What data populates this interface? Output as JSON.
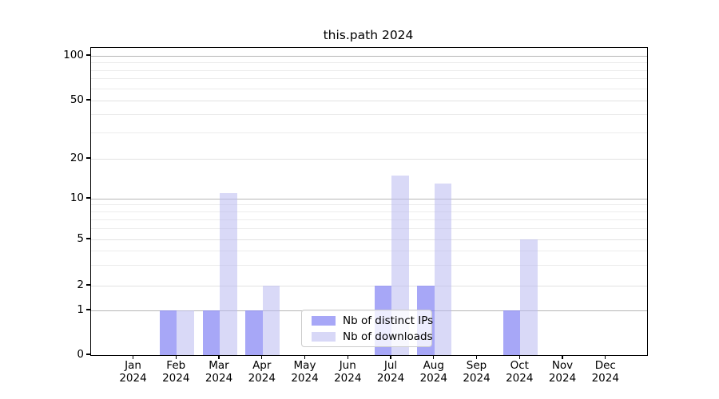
{
  "chart_data": {
    "type": "bar",
    "title": "this.path 2024",
    "categories": [
      "Jan",
      "Feb",
      "Mar",
      "Apr",
      "May",
      "Jun",
      "Jul",
      "Aug",
      "Sep",
      "Oct",
      "Nov",
      "Dec"
    ],
    "category_year": "2024",
    "series": [
      {
        "key": "distinct-ips",
        "name": "Nb of distinct IPs",
        "color": "#a7a7f7",
        "values": [
          0,
          1,
          1,
          1,
          0,
          0,
          2,
          2,
          0,
          1,
          0,
          0
        ]
      },
      {
        "key": "downloads",
        "name": "Nb of downloads",
        "color": "#d8d8f7",
        "values": [
          0,
          1,
          11,
          2,
          0,
          0,
          15,
          13,
          0,
          5,
          0,
          0
        ]
      }
    ],
    "xlabel": "",
    "ylabel": "",
    "y_axis": {
      "scale": "log-with-zero-baseline",
      "major_ticks": [
        0,
        1,
        2,
        5,
        10,
        20,
        50,
        100
      ],
      "minor_ticks": [
        3,
        4,
        6,
        7,
        8,
        9,
        30,
        40,
        60,
        70,
        80,
        90
      ],
      "ylim": [
        0,
        113
      ]
    },
    "grid": "on",
    "legend_position": "bottom-center",
    "colors": {
      "grid_decade": "#b6b6b6",
      "grid_labeled": "#e2e2e2",
      "grid_minor": "#ececec",
      "spine": "#000000",
      "background": "#ffffff"
    }
  }
}
